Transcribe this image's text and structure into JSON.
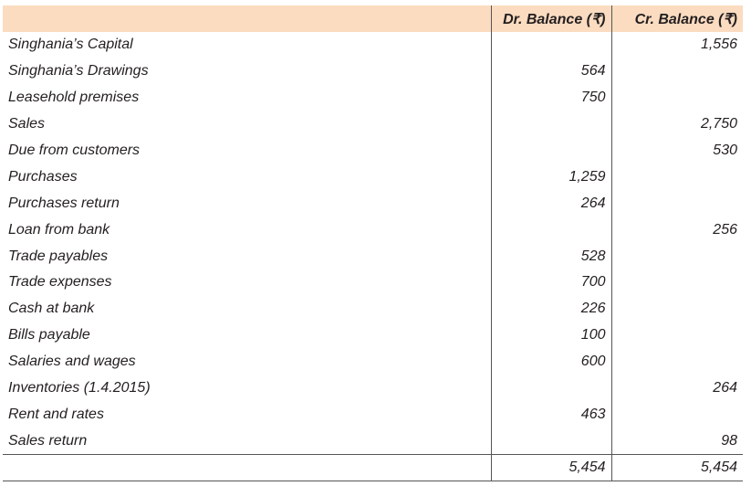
{
  "header": {
    "particulars": "",
    "dr": "Dr. Balance (₹)",
    "cr": "Cr. Balance (₹)"
  },
  "rows": [
    {
      "label": "Singhania’s Capital",
      "dr": "",
      "cr": "1,556"
    },
    {
      "label": "Singhania’s Drawings",
      "dr": "564",
      "cr": ""
    },
    {
      "label": "Leasehold premises",
      "dr": "750",
      "cr": ""
    },
    {
      "label": "Sales",
      "dr": "",
      "cr": "2,750"
    },
    {
      "label": "Due from customers",
      "dr": "",
      "cr": "530"
    },
    {
      "label": "Purchases",
      "dr": "1,259",
      "cr": ""
    },
    {
      "label": "Purchases return",
      "dr": "264",
      "cr": ""
    },
    {
      "label": "Loan from bank",
      "dr": "",
      "cr": "256"
    },
    {
      "label": "Trade payables",
      "dr": "528",
      "cr": ""
    },
    {
      "label": "Trade expenses",
      "dr": "700",
      "cr": ""
    },
    {
      "label": "Cash at bank",
      "dr": "226",
      "cr": ""
    },
    {
      "label": "Bills payable",
      "dr": "100",
      "cr": ""
    },
    {
      "label": "Salaries and wages",
      "dr": "600",
      "cr": ""
    },
    {
      "label": "Inventories (1.4.2015)",
      "dr": "",
      "cr": "264"
    },
    {
      "label": "Rent and rates",
      "dr": "463",
      "cr": ""
    },
    {
      "label": "Sales return",
      "dr": "",
      "cr": "98"
    }
  ],
  "totals": {
    "label": "",
    "dr": "5,454",
    "cr": "5,454"
  }
}
